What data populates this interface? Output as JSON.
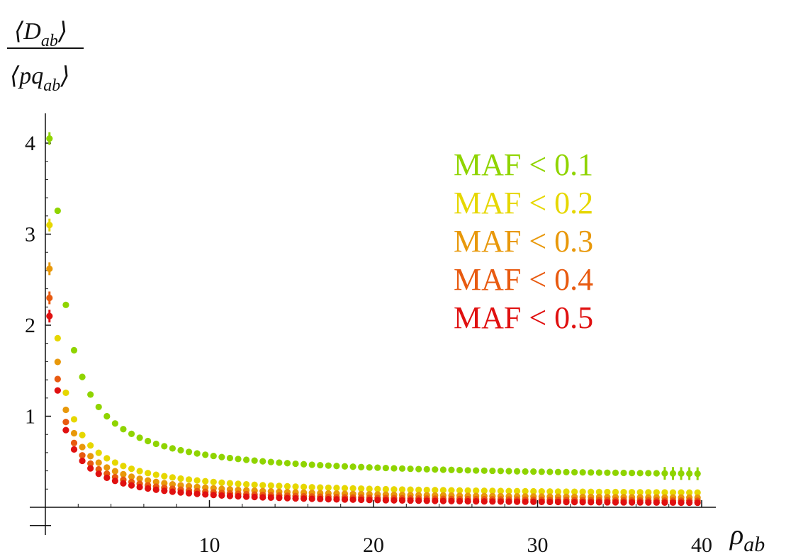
{
  "chart_data": {
    "type": "scatter",
    "xlabel": {
      "main": "ρ",
      "sub": "ab"
    },
    "ylabel": {
      "numerator": {
        "open": "⟨",
        "main": "D",
        "sub": "ab",
        "close": "⟩"
      },
      "denominator": {
        "open": "⟨",
        "main": "pq",
        "sub": "ab",
        "close": "⟩"
      }
    },
    "xlim": [
      0,
      40
    ],
    "ylim": [
      -0.2,
      4.2
    ],
    "x_ticks": [
      10,
      20,
      30,
      40
    ],
    "y_ticks": [
      1,
      2,
      3,
      4
    ],
    "grid": false,
    "legend_position": "top-right",
    "series": [
      {
        "name": "MAF < 0.1",
        "color": "#8fd400",
        "a": 0.3,
        "b": 2.75,
        "c": 1.2,
        "d": 0.18
      },
      {
        "name": "MAF < 0.2",
        "color": "#e6d700",
        "a": 0.12,
        "b": 1.65,
        "c": 1.0,
        "d": 0.2
      },
      {
        "name": "MAF < 0.3",
        "color": "#e8980a",
        "a": 0.07,
        "b": 1.45,
        "c": 1.0,
        "d": 0.2
      },
      {
        "name": "MAF < 0.4",
        "color": "#e85a10",
        "a": 0.04,
        "b": 1.3,
        "c": 1.0,
        "d": 0.2
      },
      {
        "name": "MAF < 0.5",
        "color": "#e01010",
        "a": 0.02,
        "b": 1.2,
        "c": 1.0,
        "d": 0.2
      }
    ],
    "first_points": [
      4.05,
      3.1,
      2.62,
      2.3,
      2.1
    ],
    "x_start": 0.25,
    "x_step": 0.5,
    "n_points": 80
  }
}
